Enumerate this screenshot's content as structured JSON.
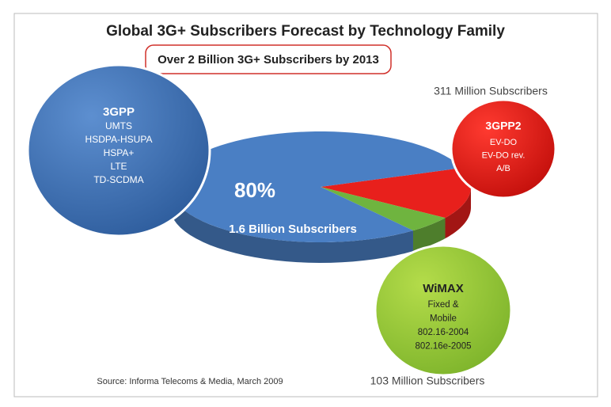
{
  "chart_data": {
    "type": "pie",
    "title": "Global 3G+ Subscribers Forecast by Technology Family",
    "subtitle": "Over 2 Billion 3G+ Subscribers by 2013",
    "categories": [
      "3GPP",
      "3GPP2",
      "WiMAX"
    ],
    "values": [
      80,
      15,
      5
    ],
    "value_labels": [
      "80%",
      null,
      null
    ],
    "colors": [
      "#4a7fc4",
      "#e8201c",
      "#6fb43f"
    ],
    "subscriber_labels": [
      "1.6 Billion Subscribers",
      "311 Million Subscribers",
      "103 Million Subscribers"
    ],
    "technologies": [
      [
        "UMTS",
        "HSDPA-HSUPA",
        "HSPA+",
        "LTE",
        "TD-SCDMA"
      ],
      [
        "EV-DO",
        "EV-DO rev.",
        "A/B"
      ],
      [
        "Fixed &",
        "Mobile",
        "802.16-2004",
        "802.16e-2005"
      ]
    ],
    "source": "Source: Informa Telecoms & Media, March 2009"
  }
}
